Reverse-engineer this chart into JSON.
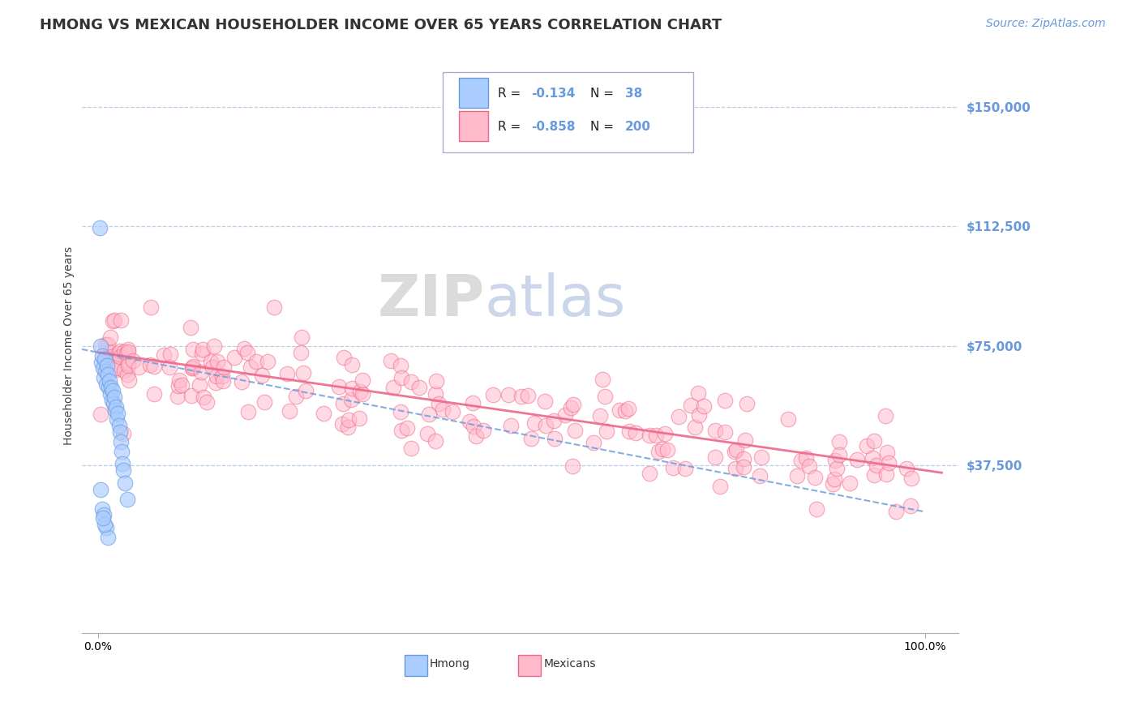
{
  "title": "HMONG VS MEXICAN HOUSEHOLDER INCOME OVER 65 YEARS CORRELATION CHART",
  "source": "Source: ZipAtlas.com",
  "ylabel": "Householder Income Over 65 years",
  "background_color": "#ffffff",
  "watermark_zip": "ZIP",
  "watermark_atlas": "atlas",
  "legend_r_hmong": "-0.134",
  "legend_n_hmong": "38",
  "legend_r_mexican": "-0.858",
  "legend_n_mexican": "200",
  "hmong_color": "#6699dd",
  "mexican_color": "#ee6688",
  "hmong_fill": "#aaccff",
  "mexican_fill": "#ffbbcc",
  "yticks": [
    0,
    37500,
    75000,
    112500,
    150000
  ],
  "ytick_labels": [
    "",
    "$37,500",
    "$75,000",
    "$112,500",
    "$150,000"
  ],
  "xlim": [
    -2,
    104
  ],
  "ylim": [
    -15000,
    165000
  ],
  "grid_color": "#bbd0e8",
  "grid_style": "--",
  "title_fontsize": 13,
  "axis_label_fontsize": 10,
  "tick_fontsize": 10,
  "source_fontsize": 10,
  "watermark_fontsize_zip": 52,
  "watermark_fontsize_atlas": 52
}
